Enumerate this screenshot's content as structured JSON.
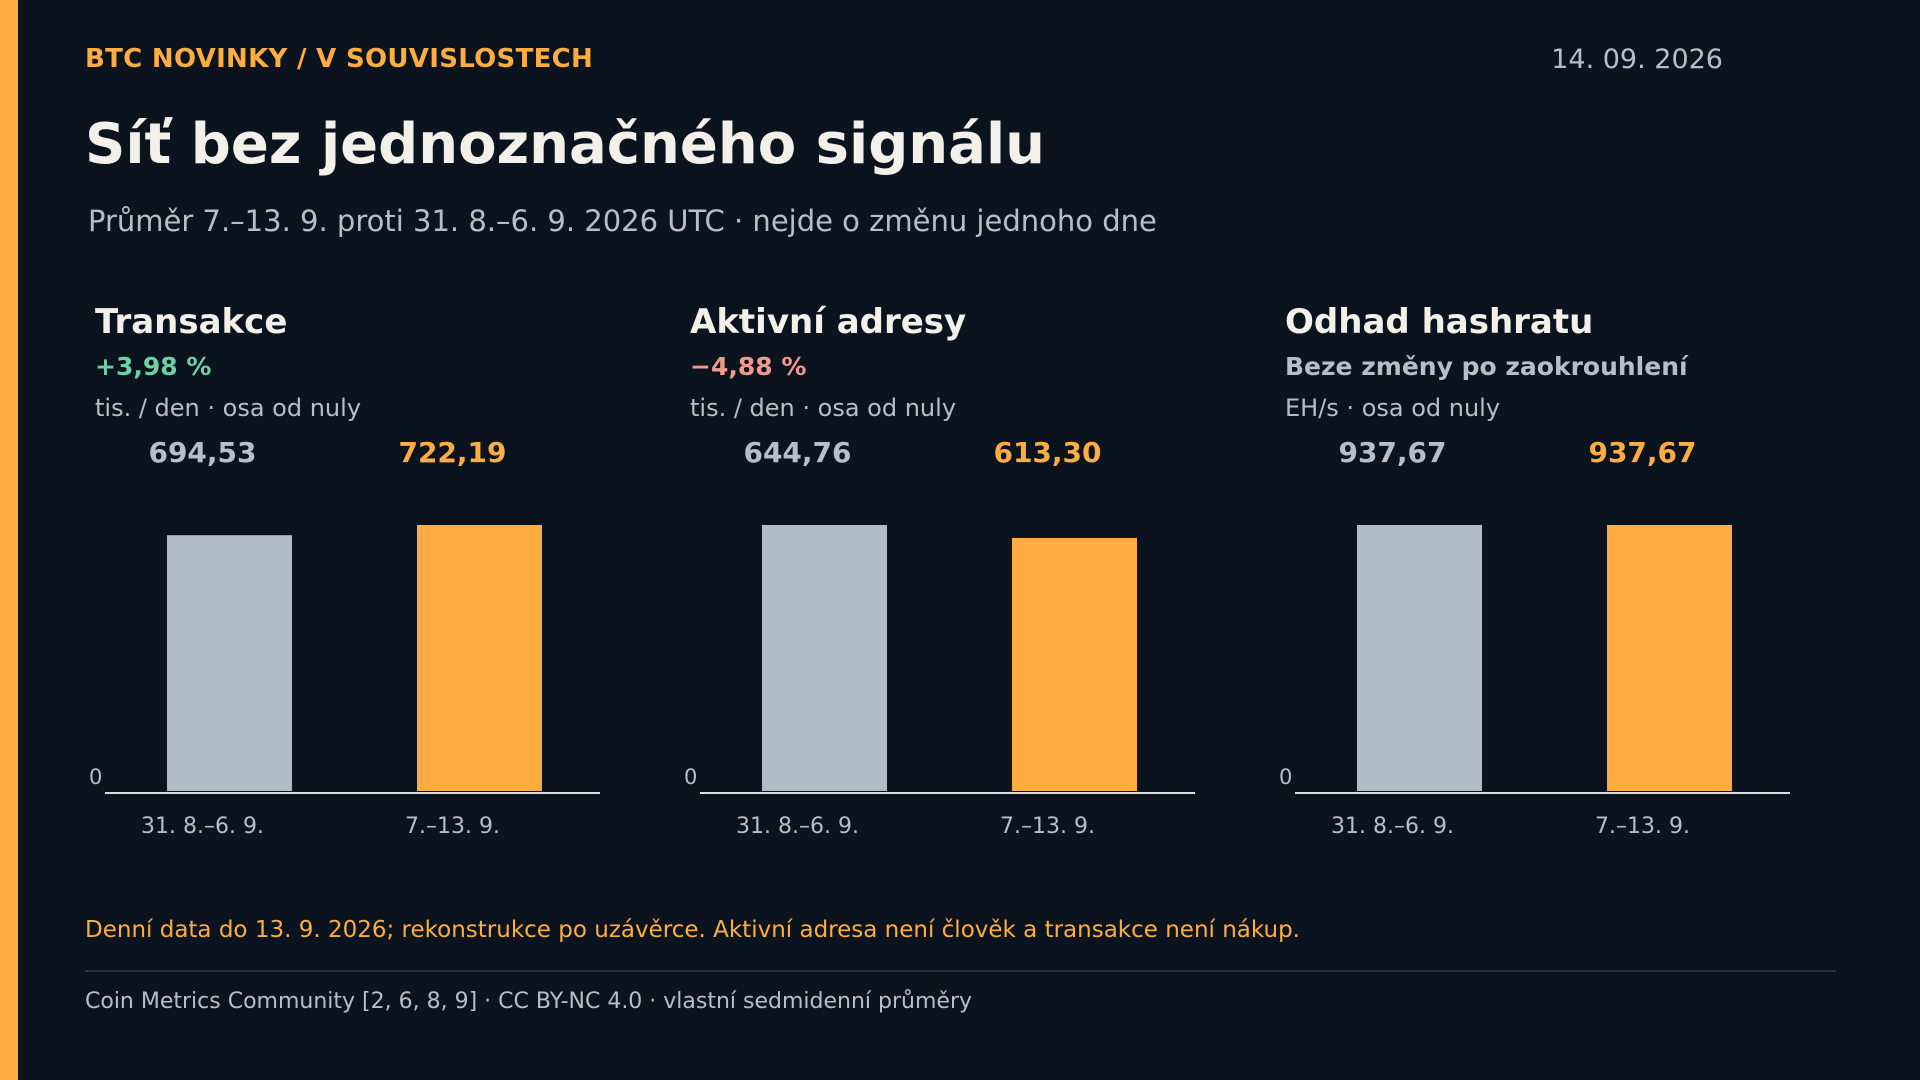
{
  "header": {
    "kicker": "BTC NOVINKY / V SOUVISLOSTECH",
    "date": "14. 09. 2026",
    "title": "Síť bez jednoznačného signálu",
    "subtitle": "Průměr 7.–13. 9. proti 31. 8.–6. 9. 2026 UTC · nejde o změnu jednoho dne"
  },
  "colors": {
    "accent": "#ffad42",
    "previous_bar": "#b0bcc7",
    "current_bar": "#ffad42",
    "positive": "#6fd0a5",
    "negative": "#f09a8e",
    "neutral": "#b6bfc9"
  },
  "chart_data": [
    {
      "type": "bar",
      "title": "Transakce",
      "change": "+3,98 %",
      "change_tone": "positive",
      "unit_note": "tis. / den · osa od nuly",
      "categories": [
        "31. 8.–6. 9.",
        "7.–13. 9."
      ],
      "values": [
        694.53,
        722.19
      ],
      "value_labels": [
        "694,53",
        "722,19"
      ],
      "zero_label": "0",
      "ylim": [
        0,
        722.19
      ]
    },
    {
      "type": "bar",
      "title": "Aktivní adresy",
      "change": "−4,88 %",
      "change_tone": "negative",
      "unit_note": "tis. / den · osa od nuly",
      "categories": [
        "31. 8.–6. 9.",
        "7.–13. 9."
      ],
      "values": [
        644.76,
        613.3
      ],
      "value_labels": [
        "644,76",
        "613,30"
      ],
      "zero_label": "0",
      "ylim": [
        0,
        644.76
      ]
    },
    {
      "type": "bar",
      "title": "Odhad hashratu",
      "change": "Beze změny po zaokrouhlení",
      "change_tone": "neutral",
      "unit_note": "EH/s · osa od nuly",
      "categories": [
        "31. 8.–6. 9.",
        "7.–13. 9."
      ],
      "values": [
        937.67,
        937.67
      ],
      "value_labels": [
        "937,67",
        "937,67"
      ],
      "zero_label": "0",
      "ylim": [
        0,
        937.67
      ]
    }
  ],
  "footnote": "Denní data do 13. 9. 2026; rekonstrukce po uzávěrce. Aktivní adresa není člověk a transakce není nákup.",
  "source": "Coin Metrics Community [2, 6, 8, 9] · CC BY-NC 4.0 · vlastní sedmidenní průměry"
}
